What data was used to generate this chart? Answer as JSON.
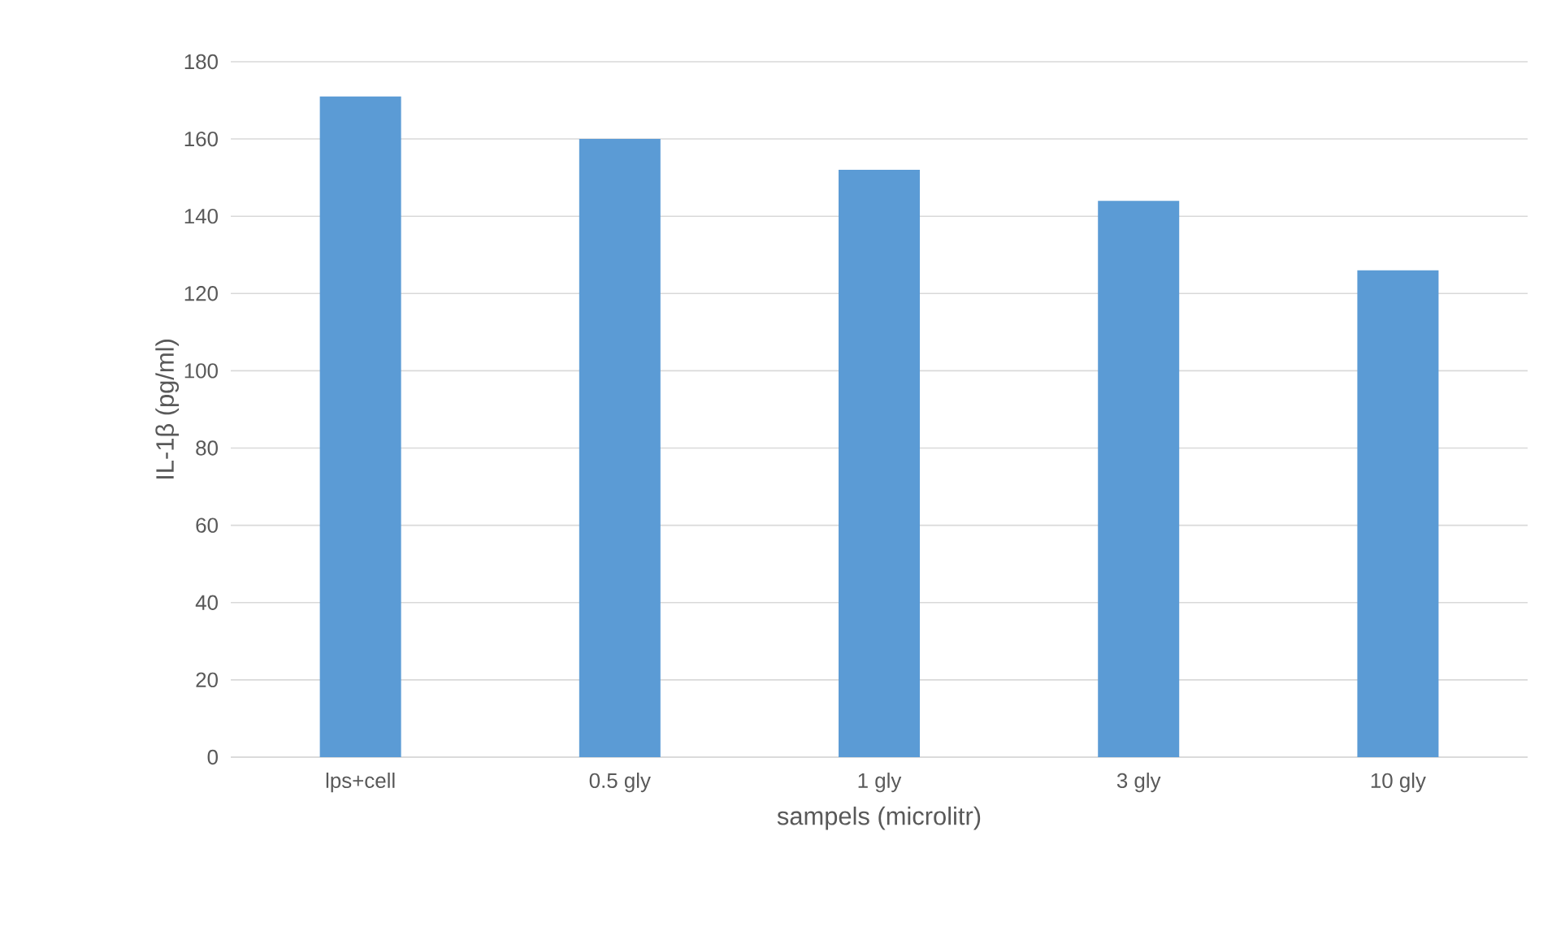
{
  "chart_data": {
    "type": "bar",
    "xlabel": "sampels (microlitr)",
    "ylabel": "IL-1β (pg/ml)",
    "categories": [
      "lps+cell",
      "0.5 gly",
      "1 gly",
      "3 gly",
      "10 gly"
    ],
    "values": [
      171,
      160,
      152,
      144,
      126
    ],
    "color": "#5b9bd5",
    "ylim": [
      0,
      180
    ],
    "yticks": [
      0,
      20,
      40,
      60,
      80,
      100,
      120,
      140,
      160,
      180
    ],
    "grid": "y"
  }
}
